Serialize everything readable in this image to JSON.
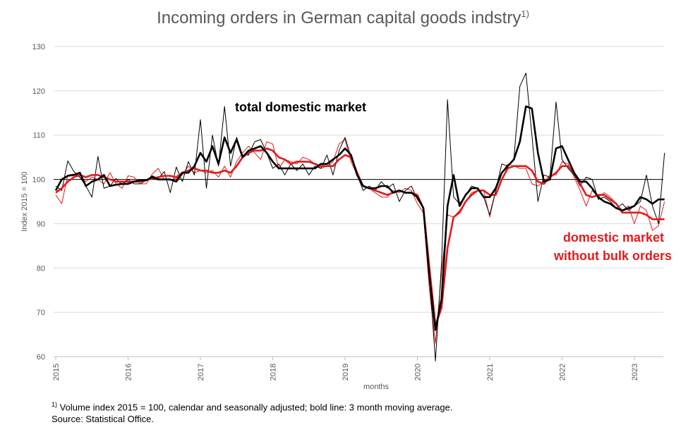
{
  "chart_data": {
    "type": "line",
    "title": "Incoming orders in German capital goods indstry",
    "title_superscript": "1)",
    "ylabel": "Index 2015 = 100",
    "xlabel": "months",
    "ylim": [
      60,
      130
    ],
    "yticks": [
      60,
      70,
      80,
      90,
      100,
      110,
      120,
      130
    ],
    "xtick_labels": [
      "2015",
      "2016",
      "2017",
      "2018",
      "2019",
      "2020",
      "2021",
      "2022",
      "2023"
    ],
    "reference_line": 100,
    "grid": "horizontal",
    "x_start": "2015-01",
    "series": [
      {
        "name": "total domestic market",
        "style": "thin",
        "color": "#000000",
        "values": [
          98.5,
          97.5,
          104.2,
          101.8,
          100.5,
          98.5,
          96.0,
          105.2,
          98.0,
          98.5,
          100.2,
          98.8,
          100.0,
          99.0,
          99.0,
          99.8,
          100.8,
          100.2,
          101.8,
          97.0,
          102.8,
          99.5,
          104.0,
          101.0,
          113.5,
          98.0,
          110.0,
          103.0,
          116.5,
          103.0,
          109.5,
          105.5,
          105.5,
          108.5,
          109.0,
          106.0,
          102.5,
          103.5,
          101.0,
          103.5,
          102.0,
          103.5,
          101.0,
          103.0,
          102.5,
          105.5,
          101.0,
          106.5,
          109.5,
          105.0,
          101.0,
          97.5,
          98.5,
          97.5,
          99.5,
          98.0,
          99.0,
          95.0,
          97.5,
          98.5,
          95.5,
          93.5,
          78.0,
          57.5,
          81.0,
          118.0,
          96.0,
          94.5,
          96.5,
          98.5,
          98.0,
          96.0,
          92.0,
          97.5,
          103.5,
          103.0,
          104.5,
          121.0,
          124.0,
          110.0,
          95.0,
          101.0,
          100.5,
          117.5,
          104.5,
          102.5,
          101.0,
          98.5,
          100.5,
          100.0,
          95.5,
          96.0,
          95.0,
          93.5,
          94.5,
          93.0,
          94.0,
          95.0,
          101.0,
          94.0,
          90.0,
          106.0
        ]
      },
      {
        "name": "total domestic market, 3 month moving average",
        "style": "bold",
        "color": "#000000",
        "values": [
          97.5,
          100.0,
          100.8,
          101.0,
          101.5,
          98.5,
          99.5,
          100.0,
          101.0,
          98.5,
          98.8,
          99.0,
          99.0,
          99.5,
          99.8,
          99.8,
          100.5,
          100.0,
          100.0,
          100.0,
          99.5,
          101.5,
          101.5,
          103.0,
          106.0,
          104.0,
          107.5,
          103.5,
          109.5,
          106.0,
          109.0,
          105.0,
          106.5,
          107.0,
          107.5,
          106.0,
          104.0,
          102.5,
          102.5,
          102.5,
          102.5,
          102.5,
          102.5,
          102.5,
          103.5,
          103.5,
          104.5,
          105.5,
          107.0,
          105.5,
          101.0,
          98.5,
          98.0,
          98.0,
          98.5,
          98.5,
          97.0,
          97.5,
          97.0,
          97.0,
          96.0,
          93.5,
          78.0,
          66.0,
          73.0,
          94.0,
          101.0,
          94.0,
          96.5,
          98.0,
          98.0,
          96.0,
          96.0,
          98.0,
          101.5,
          103.0,
          104.5,
          108.5,
          116.5,
          116.0,
          106.0,
          99.5,
          100.0,
          107.0,
          107.5,
          104.5,
          101.5,
          99.5,
          99.5,
          98.0,
          96.0,
          95.0,
          94.5,
          93.5,
          93.0,
          93.5,
          94.0,
          96.0,
          95.5,
          94.5,
          95.5,
          95.5
        ]
      },
      {
        "name": "domestic market without bulk orders",
        "style": "thin",
        "color": "#e31a1c",
        "values": [
          96.5,
          94.5,
          101.0,
          101.2,
          100.5,
          99.5,
          100.5,
          100.0,
          99.0,
          101.5,
          99.0,
          98.0,
          100.8,
          100.5,
          99.0,
          99.0,
          101.2,
          102.5,
          100.0,
          99.8,
          100.2,
          101.0,
          103.0,
          101.5,
          102.0,
          101.5,
          102.0,
          100.5,
          103.0,
          100.5,
          104.0,
          106.0,
          107.5,
          106.0,
          104.5,
          108.5,
          108.0,
          102.5,
          104.5,
          104.0,
          103.5,
          105.0,
          104.5,
          103.5,
          102.5,
          103.0,
          104.0,
          108.0,
          109.0,
          104.0,
          101.0,
          98.5,
          98.0,
          97.0,
          96.0,
          96.0,
          97.5,
          97.0,
          98.0,
          97.5,
          94.5,
          92.5,
          75.0,
          63.0,
          79.0,
          92.0,
          91.5,
          93.0,
          95.0,
          97.0,
          97.5,
          97.5,
          91.5,
          97.5,
          101.5,
          103.5,
          103.0,
          102.5,
          102.5,
          99.0,
          98.5,
          99.5,
          101.0,
          101.0,
          104.0,
          103.5,
          100.5,
          97.5,
          94.0,
          97.5,
          96.0,
          97.0,
          96.0,
          94.5,
          93.0,
          94.0,
          90.0,
          94.0,
          93.0,
          88.5,
          89.5,
          95.0
        ]
      },
      {
        "name": "domestic market without bulk orders, 3 month moving average",
        "style": "bold",
        "color": "#e31a1c",
        "values": [
          97.0,
          98.0,
          99.5,
          100.5,
          101.0,
          100.5,
          101.0,
          101.0,
          100.5,
          100.0,
          99.5,
          99.5,
          99.5,
          99.5,
          99.5,
          99.8,
          100.2,
          100.5,
          100.8,
          100.8,
          100.5,
          101.5,
          102.0,
          102.5,
          102.0,
          102.0,
          101.5,
          101.5,
          102.0,
          101.5,
          103.0,
          105.0,
          106.0,
          106.5,
          106.5,
          107.0,
          106.5,
          105.0,
          104.5,
          103.5,
          104.0,
          104.0,
          104.0,
          103.5,
          103.0,
          103.0,
          103.0,
          104.5,
          105.5,
          105.0,
          101.5,
          98.5,
          98.0,
          97.5,
          97.0,
          96.5,
          97.0,
          97.5,
          97.0,
          97.0,
          96.5,
          93.5,
          80.0,
          67.0,
          71.0,
          84.5,
          91.5,
          92.5,
          95.0,
          96.5,
          97.5,
          97.5,
          96.5,
          96.5,
          100.0,
          102.5,
          103.0,
          103.0,
          103.0,
          102.0,
          99.5,
          99.0,
          100.5,
          101.5,
          103.0,
          103.0,
          101.5,
          99.0,
          96.5,
          96.0,
          96.5,
          96.5,
          95.5,
          94.5,
          92.5,
          92.5,
          92.5,
          92.5,
          92.0,
          91.0,
          91.0,
          91.0
        ]
      }
    ],
    "annotations": [
      {
        "text": "total domestic market",
        "color": "#000000"
      },
      {
        "text": "domestic market",
        "color": "#e31a1c"
      },
      {
        "text": "without bulk orders",
        "color": "#e31a1c"
      }
    ]
  },
  "footnote": {
    "marker": "1)",
    "line1": "Volume index 2015 = 100,  calendar and seasonally adjusted; bold line: 3 month moving average.",
    "line2": "Source: Statistical Office."
  }
}
